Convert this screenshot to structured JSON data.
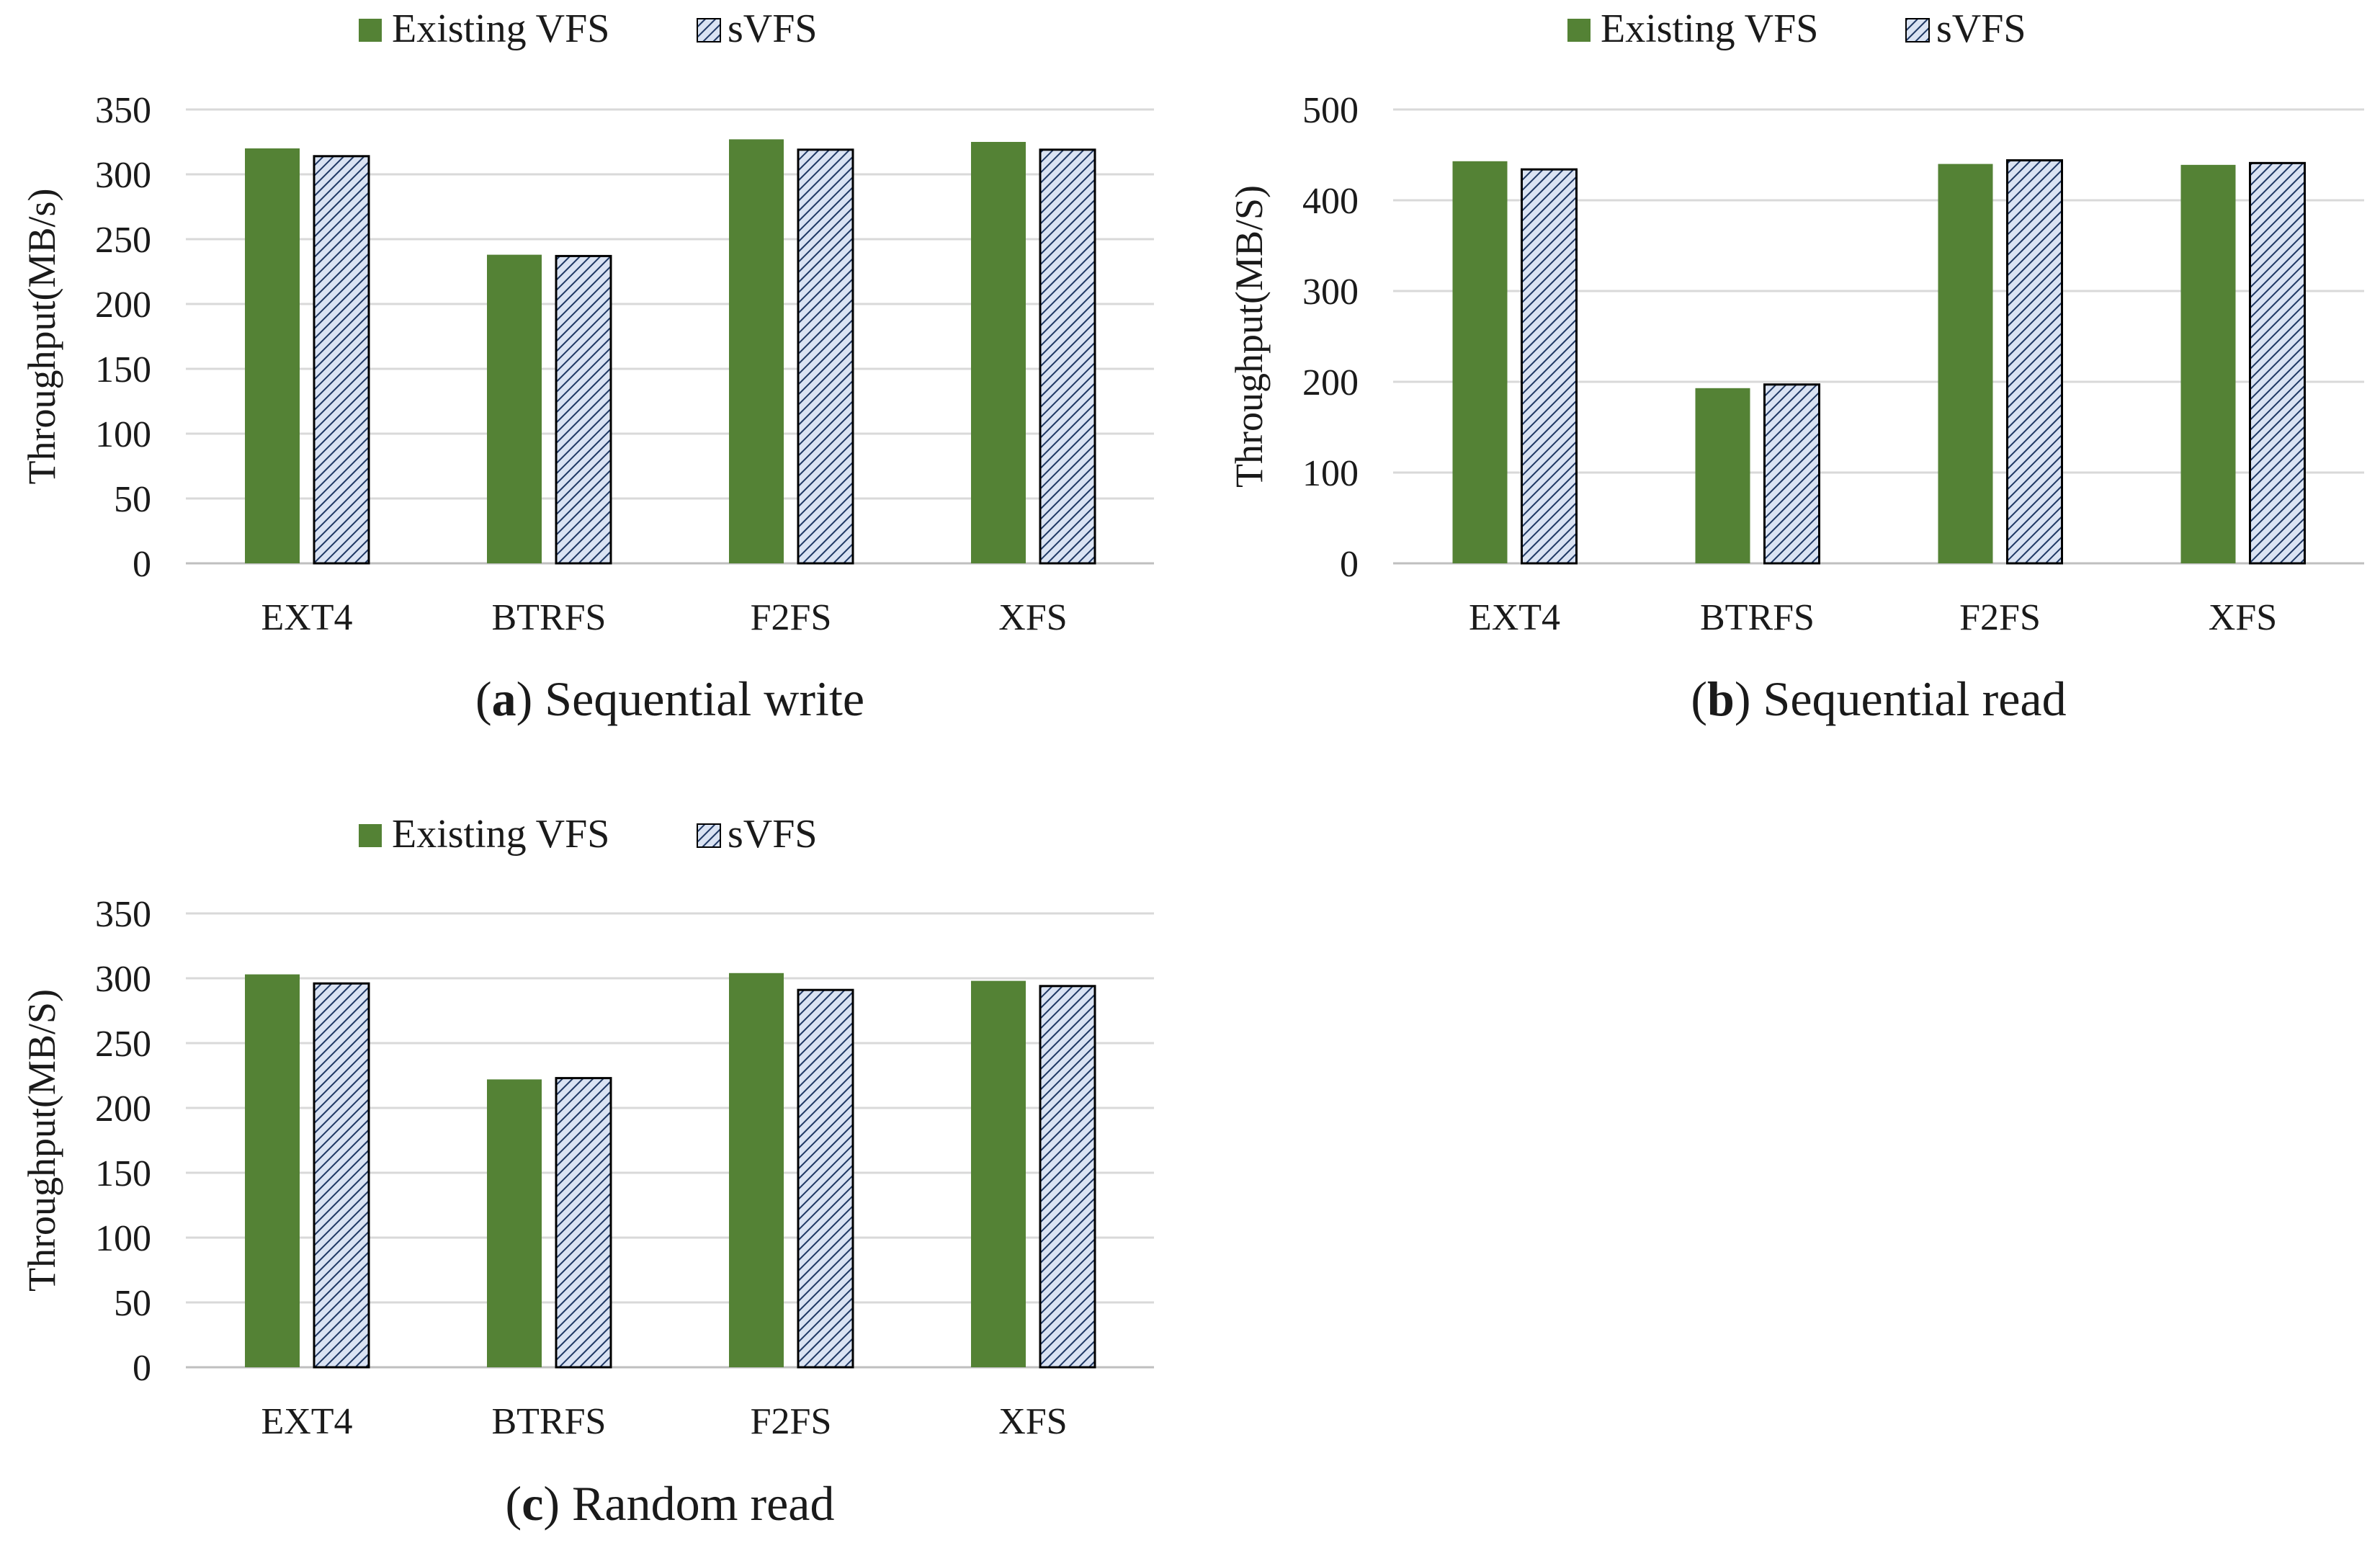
{
  "colors": {
    "existing": "#548235",
    "svfs_fill": "#dae3f3",
    "svfs_hatch": "#1f3864",
    "gridline": "#d9d9d9",
    "axis": "#bfbfbf"
  },
  "legend": {
    "existing_label": "Existing VFS",
    "svfs_label": "sVFS"
  },
  "chart_data": [
    {
      "type": "bar",
      "title": "Sequential write",
      "caption_letter": "a",
      "categories": [
        "EXT4",
        "BTRFS",
        "F2FS",
        "XFS"
      ],
      "series": [
        {
          "name": "Existing VFS",
          "values": [
            320,
            238,
            327,
            325
          ]
        },
        {
          "name": "sVFS",
          "values": [
            314,
            237,
            319,
            319
          ]
        }
      ],
      "ylabel": "Throughput(MB/s)",
      "xlabel": "",
      "ylim": [
        0,
        350
      ],
      "yticks": [
        0,
        50,
        100,
        150,
        200,
        250,
        300,
        350
      ],
      "grid": true,
      "legend_position": "top-center"
    },
    {
      "type": "bar",
      "title": "Sequential read",
      "caption_letter": "b",
      "categories": [
        "EXT4",
        "BTRFS",
        "F2FS",
        "XFS"
      ],
      "series": [
        {
          "name": "Existing VFS",
          "values": [
            443,
            193,
            440,
            439
          ]
        },
        {
          "name": "sVFS",
          "values": [
            434,
            197,
            444,
            441
          ]
        }
      ],
      "ylabel": "Throughput(MB/S)",
      "xlabel": "",
      "ylim": [
        0,
        500
      ],
      "yticks": [
        0,
        100,
        200,
        300,
        400,
        500
      ],
      "grid": true,
      "legend_position": "top-center"
    },
    {
      "type": "bar",
      "title": "Random read",
      "caption_letter": "c",
      "categories": [
        "EXT4",
        "BTRFS",
        "F2FS",
        "XFS"
      ],
      "series": [
        {
          "name": "Existing VFS",
          "values": [
            303,
            222,
            304,
            298
          ]
        },
        {
          "name": "sVFS",
          "values": [
            296,
            223,
            291,
            294
          ]
        }
      ],
      "ylabel": "Throughput(MB/S)",
      "xlabel": "",
      "ylim": [
        0,
        350
      ],
      "yticks": [
        0,
        50,
        100,
        150,
        200,
        250,
        300,
        350
      ],
      "grid": true,
      "legend_position": "top-center"
    }
  ]
}
